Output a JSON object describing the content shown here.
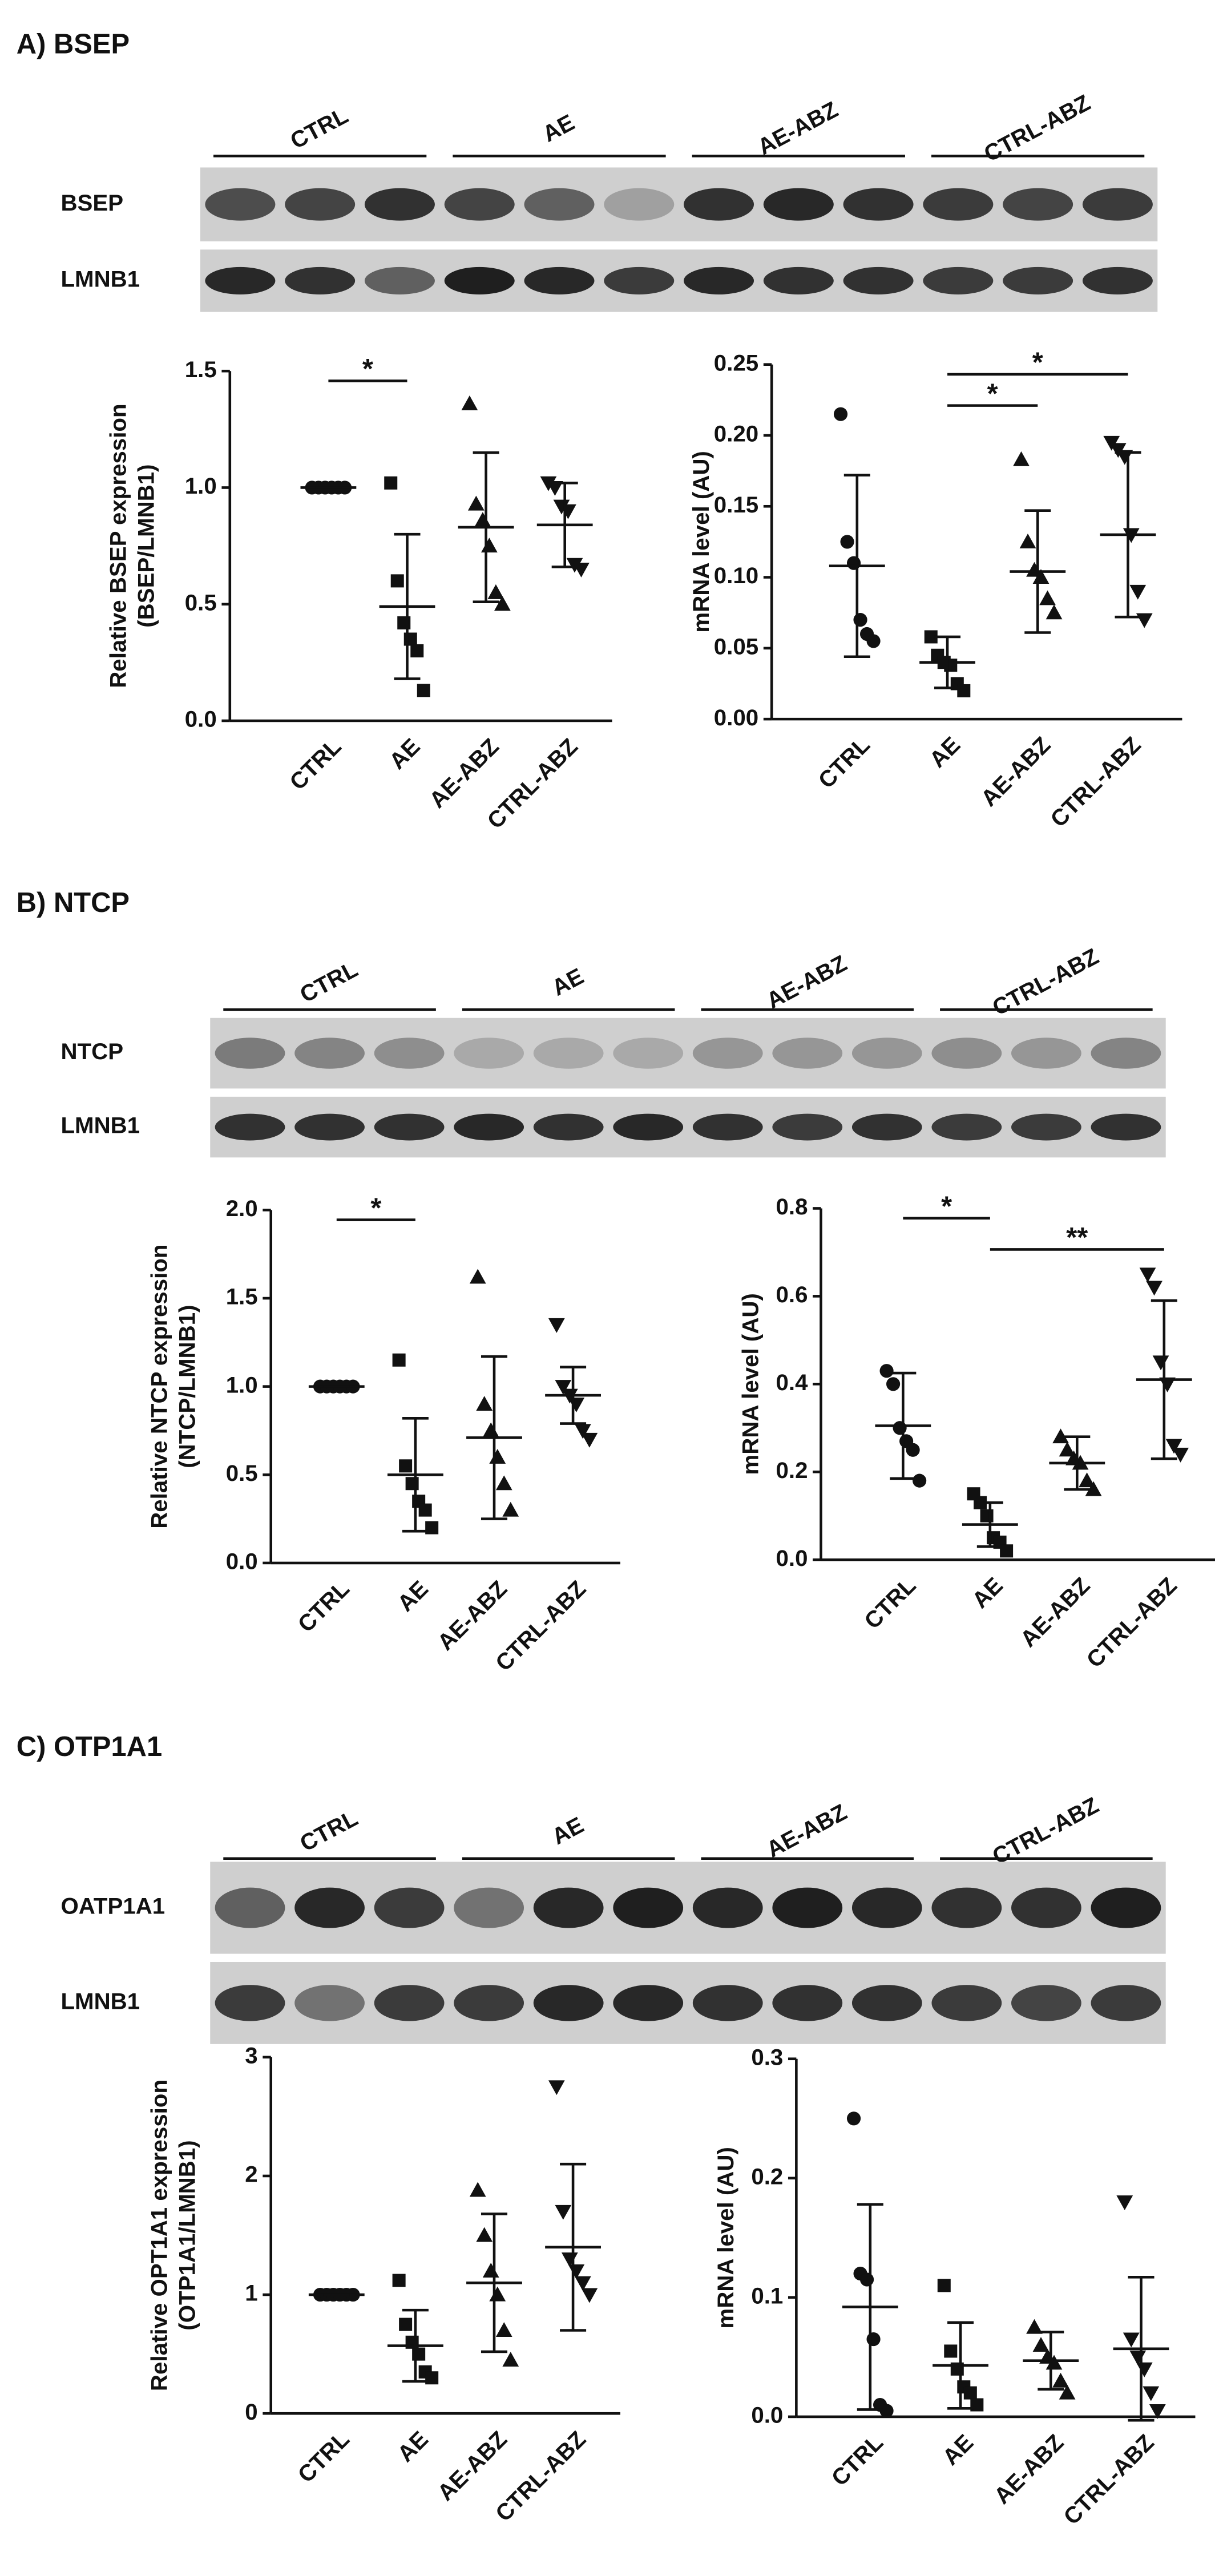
{
  "panels": [
    {
      "title": "A) BSEP",
      "groups": [
        "CTRL",
        "AE",
        "AE-ABZ",
        "CTRL-ABZ"
      ],
      "rows": [
        "BSEP",
        "LMNB1"
      ]
    },
    {
      "title": "B) NTCP",
      "groups": [
        "CTRL",
        "AE",
        "AE-ABZ",
        "CTRL-ABZ"
      ],
      "rows": [
        "NTCP",
        "LMNB1"
      ]
    },
    {
      "title": "C) OTP1A1",
      "groups": [
        "CTRL",
        "AE",
        "AE-ABZ",
        "CTRL-ABZ"
      ],
      "rows": [
        "OATP1A1",
        "LMNB1"
      ]
    }
  ],
  "chart_data": [
    {
      "type": "dot",
      "y_label": [
        "Relative BSEP expression",
        "(BSEP/LMNB1)"
      ],
      "categories": [
        "CTRL",
        "AE",
        "AE-ABZ",
        "CTRL-ABZ"
      ],
      "markers": [
        "circle",
        "square",
        "triangle-up",
        "triangle-down"
      ],
      "groups": [
        [
          1,
          1,
          1,
          1,
          1,
          1
        ],
        [
          1.02,
          0.6,
          0.42,
          0.35,
          0.3,
          0.13
        ],
        [
          1.36,
          0.93,
          0.86,
          0.75,
          0.55,
          0.5
        ],
        [
          1.02,
          1,
          0.92,
          0.9,
          0.67,
          0.65
        ]
      ],
      "means": [
        1,
        0.49,
        0.83,
        0.84
      ],
      "sd": [
        0,
        0.31,
        0.32,
        0.18
      ],
      "ylim": [
        0,
        1.5
      ],
      "yticks": [
        {
          "value": 0,
          "label": "0.0"
        },
        0.5,
        {
          "value": 1,
          "label": "1.0"
        },
        1.5
      ],
      "annotations": [
        {
          "text": "*",
          "between": [
            "CTRL",
            "AE"
          ]
        }
      ]
    },
    {
      "type": "dot",
      "y_label": [
        "mRNA level (AU)"
      ],
      "categories": [
        "CTRL",
        "AE",
        "AE-ABZ",
        "CTRL-ABZ"
      ],
      "markers": [
        "circle",
        "square",
        "triangle-up",
        "triangle-down"
      ],
      "groups": [
        [
          0.215,
          0.125,
          0.11,
          0.07,
          0.06,
          0.055
        ],
        [
          0.058,
          0.045,
          0.04,
          0.038,
          0.025,
          0.02
        ],
        [
          0.183,
          0.125,
          0.105,
          0.1,
          0.085,
          0.075
        ],
        [
          0.195,
          0.19,
          0.185,
          0.13,
          0.09,
          0.07
        ]
      ],
      "means": [
        0.108,
        0.04,
        0.104,
        0.13
      ],
      "sd": [
        0.064,
        0.018,
        0.043,
        0.058
      ],
      "ylim": [
        0,
        0.25
      ],
      "yticks": [
        {
          "value": 0,
          "label": "0.00"
        },
        0.05,
        {
          "value": 0.1,
          "label": "0.10"
        },
        0.15,
        {
          "value": 0.2,
          "label": "0.20"
        },
        0.25
      ],
      "annotations": [
        {
          "text": "*",
          "between": [
            "AE",
            "CTRL-ABZ"
          ]
        },
        {
          "text": "*",
          "between": [
            "AE",
            "AE-ABZ"
          ]
        }
      ]
    },
    {
      "type": "dot",
      "y_label": [
        "Relative NTCP expression",
        "(NTCP/LMNB1)"
      ],
      "categories": [
        "CTRL",
        "AE",
        "AE-ABZ",
        "CTRL-ABZ"
      ],
      "markers": [
        "circle",
        "square",
        "triangle-up",
        "triangle-down"
      ],
      "groups": [
        [
          1,
          1,
          1,
          1,
          1,
          1
        ],
        [
          1.15,
          0.55,
          0.45,
          0.35,
          0.3,
          0.2
        ],
        [
          1.62,
          0.9,
          0.75,
          0.6,
          0.45,
          0.3
        ],
        [
          1.35,
          1,
          0.95,
          0.9,
          0.75,
          0.7
        ]
      ],
      "means": [
        1,
        0.5,
        0.71,
        0.95
      ],
      "sd": [
        0,
        0.32,
        0.46,
        0.16
      ],
      "ylim": [
        0,
        2
      ],
      "yticks": [
        {
          "value": 0,
          "label": "0.0"
        },
        0.5,
        {
          "value": 1,
          "label": "1.0"
        },
        1.5,
        {
          "value": 2,
          "label": "2.0"
        }
      ],
      "annotations": [
        {
          "text": "*",
          "between": [
            "CTRL",
            "AE"
          ]
        }
      ]
    },
    {
      "type": "dot",
      "y_label": [
        "mRNA level (AU)"
      ],
      "categories": [
        "CTRL",
        "AE",
        "AE-ABZ",
        "CTRL-ABZ"
      ],
      "markers": [
        "circle",
        "square",
        "triangle-up",
        "triangle-down"
      ],
      "groups": [
        [
          0.43,
          0.4,
          0.3,
          0.27,
          0.25,
          0.18
        ],
        [
          0.15,
          0.13,
          0.1,
          0.05,
          0.04,
          0.02
        ],
        [
          0.28,
          0.25,
          0.23,
          0.22,
          0.18,
          0.16
        ],
        [
          0.65,
          0.62,
          0.45,
          0.4,
          0.26,
          0.24
        ]
      ],
      "means": [
        0.305,
        0.08,
        0.22,
        0.41
      ],
      "sd": [
        0.12,
        0.05,
        0.06,
        0.18
      ],
      "ylim": [
        0,
        0.8
      ],
      "yticks": [
        {
          "value": 0,
          "label": "0.0"
        },
        0.2,
        0.4,
        0.6,
        0.8
      ],
      "annotations": [
        {
          "text": "*",
          "between": [
            "CTRL",
            "AE"
          ]
        },
        {
          "text": "**",
          "between": [
            "AE",
            "CTRL-ABZ"
          ]
        }
      ]
    },
    {
      "type": "dot",
      "y_label": [
        "Relative OPT1A1 expression",
        "(OTP1A1/LMNB1)"
      ],
      "categories": [
        "CTRL",
        "AE",
        "AE-ABZ",
        "CTRL-ABZ"
      ],
      "markers": [
        "circle",
        "square",
        "triangle-up",
        "triangle-down"
      ],
      "groups": [
        [
          1,
          1,
          1,
          1,
          1,
          1
        ],
        [
          1.12,
          0.75,
          0.6,
          0.5,
          0.35,
          0.3
        ],
        [
          1.88,
          1.5,
          1.2,
          1,
          0.7,
          0.45
        ],
        [
          2.75,
          1.7,
          1.3,
          1.2,
          1.1,
          1
        ]
      ],
      "means": [
        1,
        0.57,
        1.1,
        1.4
      ],
      "sd": [
        0,
        0.3,
        0.58,
        0.7
      ],
      "ylim": [
        0,
        3
      ],
      "yticks": [
        0,
        1,
        2,
        3
      ],
      "annotations": []
    },
    {
      "type": "dot",
      "y_label": [
        "mRNA level (AU)"
      ],
      "categories": [
        "CTRL",
        "AE",
        "AE-ABZ",
        "CTRL-ABZ"
      ],
      "markers": [
        "circle",
        "square",
        "triangle-up",
        "triangle-down"
      ],
      "groups": [
        [
          0.25,
          0.12,
          0.115,
          0.065,
          0.01,
          0.005
        ],
        [
          0.11,
          0.055,
          0.04,
          0.025,
          0.02,
          0.01
        ],
        [
          0.075,
          0.06,
          0.05,
          0.045,
          0.03,
          0.02
        ],
        [
          0.18,
          0.065,
          0.05,
          0.04,
          0.02,
          0.005
        ]
      ],
      "means": [
        0.092,
        0.043,
        0.047,
        0.057
      ],
      "sd": [
        0.086,
        0.036,
        0.024,
        0.06
      ],
      "ylim": [
        0,
        0.3
      ],
      "yticks": [
        {
          "value": 0,
          "label": "0.0"
        },
        0.1,
        0.2,
        0.3
      ],
      "annotations": []
    }
  ]
}
